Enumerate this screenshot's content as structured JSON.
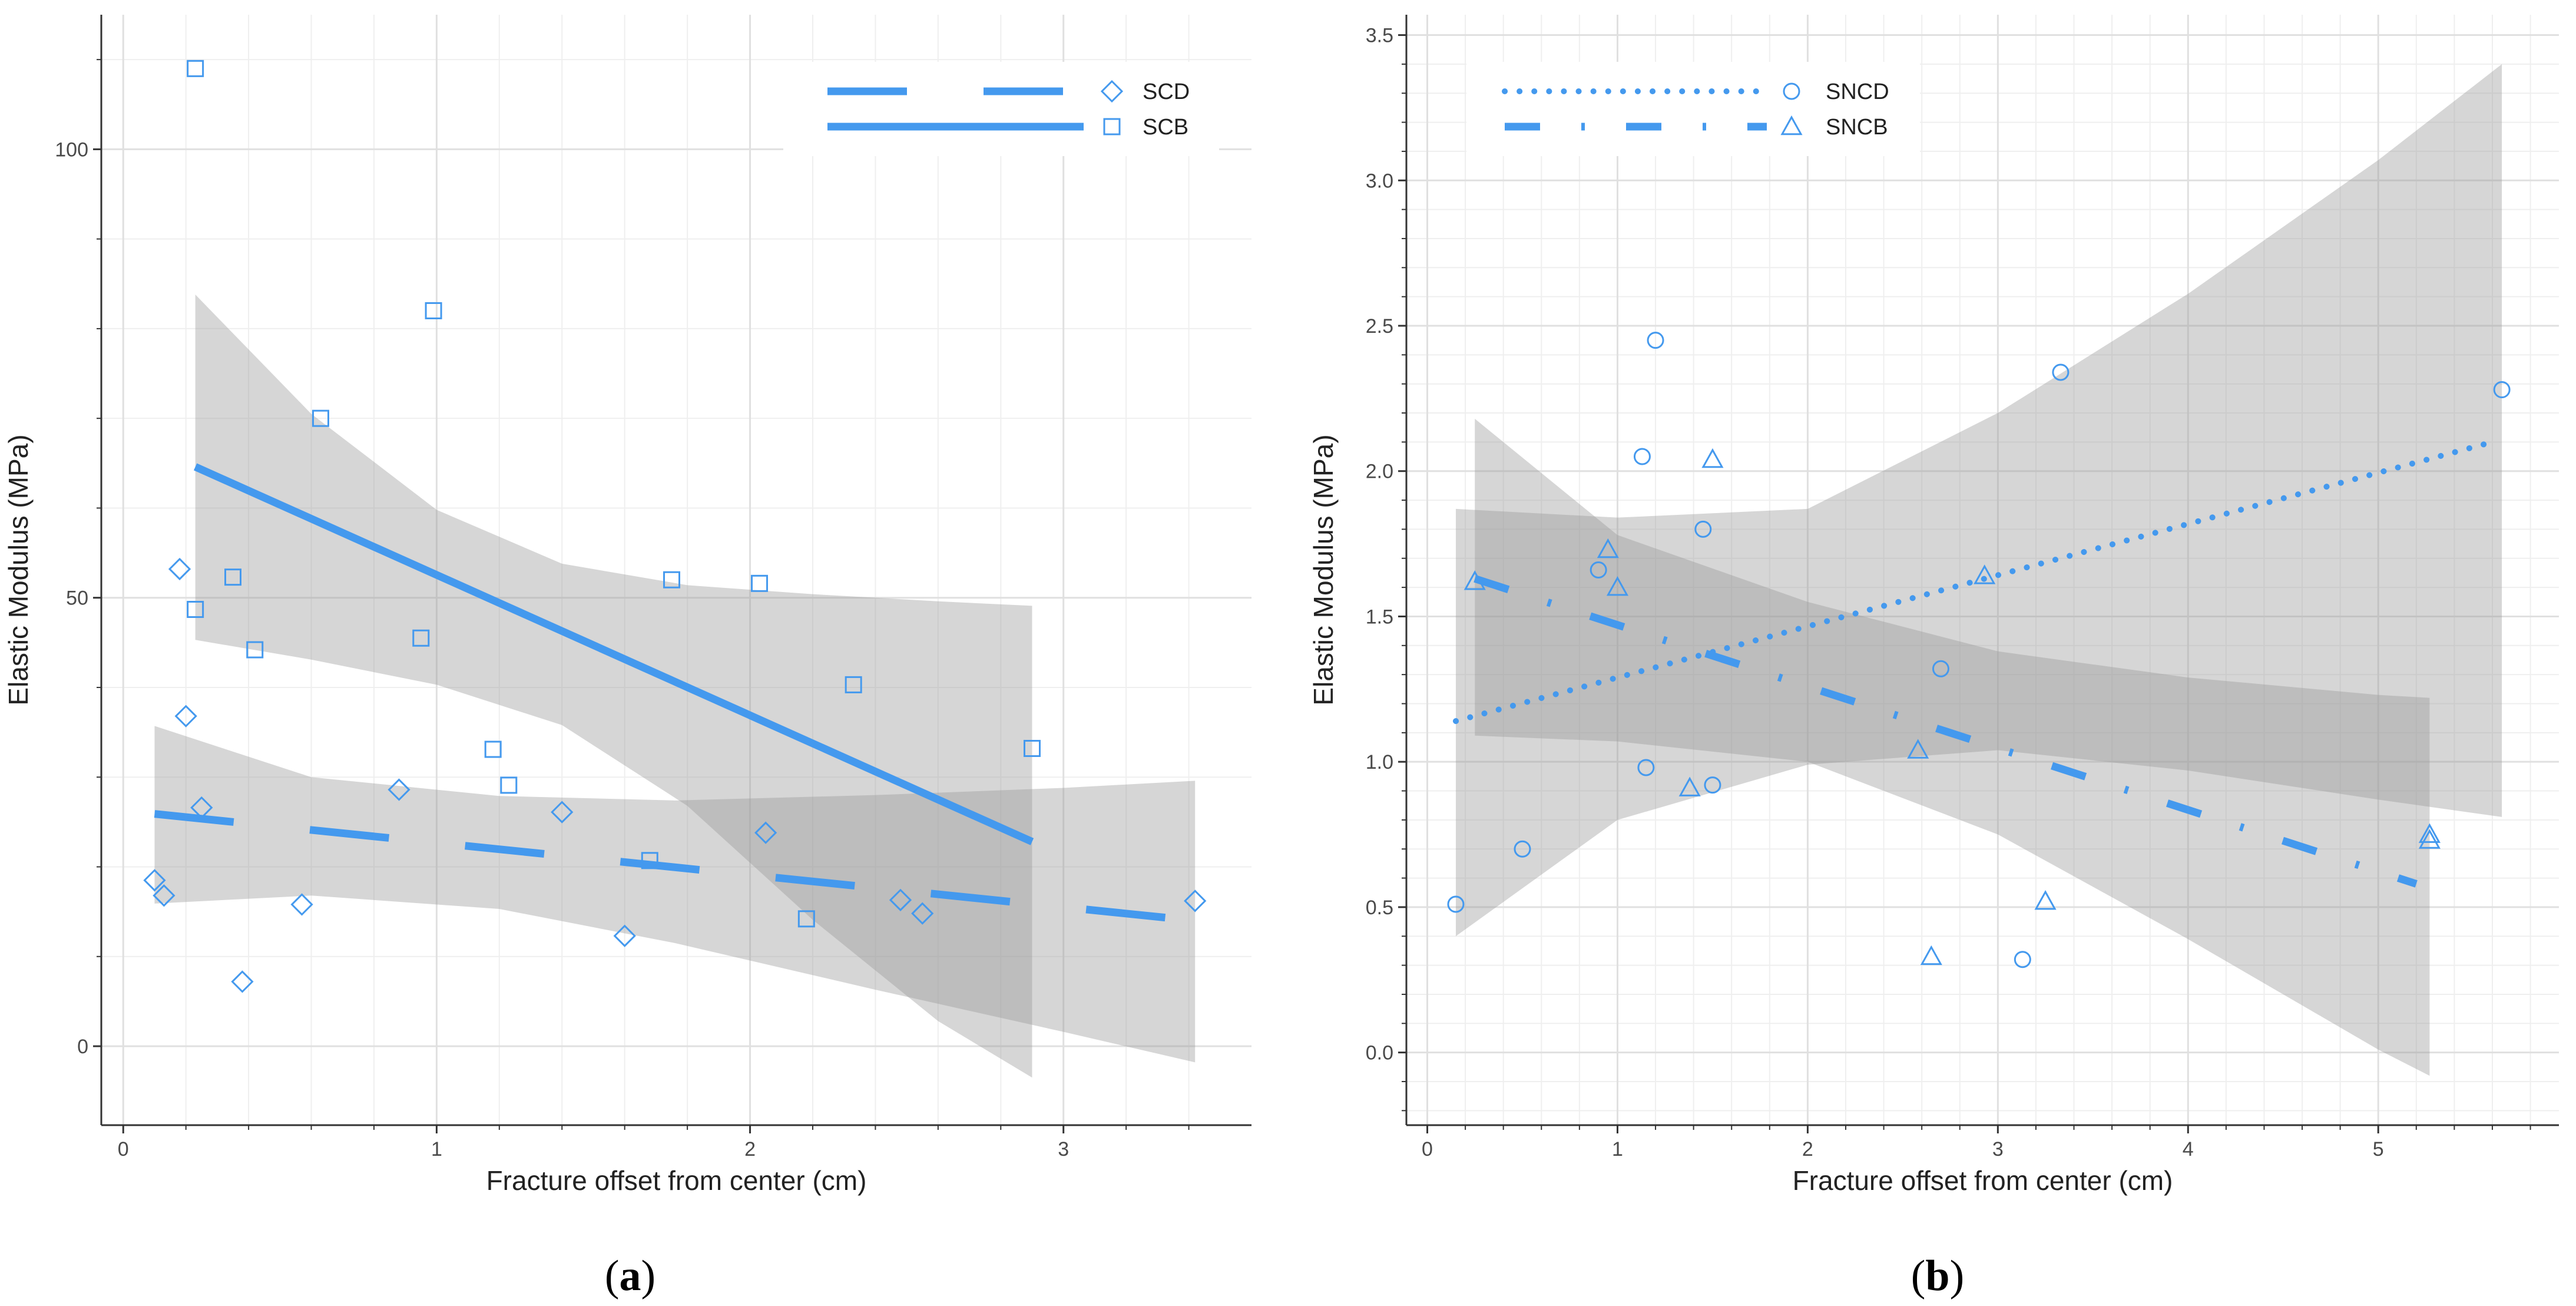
{
  "chart_data": [
    {
      "type": "scatter",
      "panel_label": "a",
      "xlabel": "Fracture offset from center (cm)",
      "ylabel": "Elastic Modulus (MPa)",
      "xlim": [
        -0.07,
        3.6
      ],
      "ylim": [
        -8.8,
        115
      ],
      "xticks": [
        0,
        1,
        2,
        3
      ],
      "xtick_labels": [
        "0",
        "1",
        "2",
        "3"
      ],
      "yticks": [
        0,
        50,
        100
      ],
      "ytick_labels": [
        "0",
        "50",
        "100"
      ],
      "legend_position": "top-right",
      "series": [
        {
          "name": "SCD",
          "marker": "diamond",
          "line_style": "long-dash",
          "x": [
            0.1,
            0.13,
            0.18,
            0.2,
            0.25,
            0.38,
            0.57,
            0.88,
            1.4,
            1.6,
            2.05,
            2.48,
            2.55,
            3.42
          ],
          "y": [
            18.5,
            16.8,
            53.2,
            36.8,
            26.6,
            7.2,
            15.8,
            28.6,
            26.1,
            12.3,
            23.8,
            16.3,
            14.8,
            16.2
          ],
          "fit": {
            "x": [
              0.1,
              3.42
            ],
            "y": [
              25.9,
              14.0
            ]
          },
          "band": {
            "x": [
              0.1,
              0.6,
              1.2,
              1.76,
              2.4,
              3.0,
              3.42
            ],
            "lower": [
              15.9,
              16.8,
              15.3,
              11.5,
              6.3,
              1.6,
              -1.8
            ],
            "upper": [
              35.7,
              30.0,
              27.9,
              27.4,
              28.0,
              28.8,
              29.6
            ]
          }
        },
        {
          "name": "SCB",
          "marker": "square",
          "line_style": "solid",
          "x": [
            0.23,
            0.23,
            0.35,
            0.42,
            0.63,
            0.95,
            0.99,
            1.18,
            1.23,
            1.68,
            1.75,
            2.03,
            2.18,
            2.33,
            2.9
          ],
          "y": [
            109.0,
            48.7,
            52.3,
            44.2,
            70.0,
            45.5,
            82.0,
            33.1,
            29.1,
            20.7,
            52.0,
            51.6,
            14.2,
            40.3,
            33.2
          ],
          "fit": {
            "x": [
              0.23,
              2.9
            ],
            "y": [
              64.6,
              22.8
            ]
          },
          "band": {
            "x": [
              0.23,
              0.6,
              1.0,
              1.4,
              1.8,
              2.2,
              2.6,
              2.9
            ],
            "lower": [
              45.3,
              43.1,
              40.3,
              35.8,
              26.8,
              14.1,
              2.8,
              -3.5
            ],
            "upper": [
              83.8,
              70.5,
              59.8,
              53.8,
              51.4,
              50.4,
              49.6,
              49.1
            ]
          }
        }
      ]
    },
    {
      "type": "scatter",
      "panel_label": "b",
      "xlabel": "Fracture offset from center (cm)",
      "ylabel": "Elastic Modulus (MPa)",
      "xlim": [
        -0.11,
        5.95
      ],
      "ylim": [
        -0.25,
        3.57
      ],
      "xticks": [
        0,
        1,
        2,
        3,
        4,
        5
      ],
      "xtick_labels": [
        "0",
        "1",
        "2",
        "3",
        "4",
        "5"
      ],
      "yticks": [
        0,
        0.5,
        1.0,
        1.5,
        2.0,
        2.5,
        3.0,
        3.5
      ],
      "ytick_labels": [
        "0.0",
        "0.5",
        "1.0",
        "1.5",
        "2.0",
        "2.5",
        "3.0",
        "3.5"
      ],
      "legend_position": "top-left",
      "series": [
        {
          "name": "SNCD",
          "marker": "circle",
          "line_style": "dotted",
          "x": [
            0.15,
            0.5,
            0.9,
            1.13,
            1.15,
            1.2,
            1.45,
            1.5,
            2.7,
            3.13,
            3.33,
            5.65
          ],
          "y": [
            0.51,
            0.7,
            1.66,
            2.05,
            0.98,
            2.45,
            1.8,
            0.92,
            1.32,
            0.32,
            2.34,
            2.28
          ],
          "fit": {
            "x": [
              0.15,
              5.6
            ],
            "y": [
              1.14,
              2.1
            ]
          },
          "band": {
            "x": [
              0.15,
              1.0,
              2.0,
              3.0,
              4.0,
              5.0,
              5.65
            ],
            "lower": [
              0.4,
              0.8,
              0.99,
              1.04,
              0.97,
              0.87,
              0.81
            ],
            "upper": [
              1.87,
              1.84,
              1.87,
              2.2,
              2.61,
              3.07,
              3.4
            ]
          }
        },
        {
          "name": "SNCB",
          "marker": "triangle",
          "line_style": "dash-dot",
          "x": [
            0.25,
            0.95,
            1.0,
            1.38,
            1.5,
            2.58,
            2.65,
            2.93,
            3.25,
            5.27,
            5.27
          ],
          "y": [
            1.62,
            1.73,
            1.6,
            0.91,
            2.04,
            1.04,
            0.33,
            1.64,
            0.52,
            0.75,
            0.73
          ],
          "fit": {
            "x": [
              0.25,
              5.2
            ],
            "y": [
              1.63,
              0.58
            ]
          },
          "band": {
            "x": [
              0.25,
              1.0,
              2.0,
              3.0,
              4.0,
              5.0,
              5.27
            ],
            "lower": [
              1.09,
              1.07,
              1.0,
              0.75,
              0.39,
              0.01,
              -0.08
            ],
            "upper": [
              2.18,
              1.78,
              1.55,
              1.38,
              1.29,
              1.23,
              1.22
            ]
          }
        }
      ]
    }
  ]
}
